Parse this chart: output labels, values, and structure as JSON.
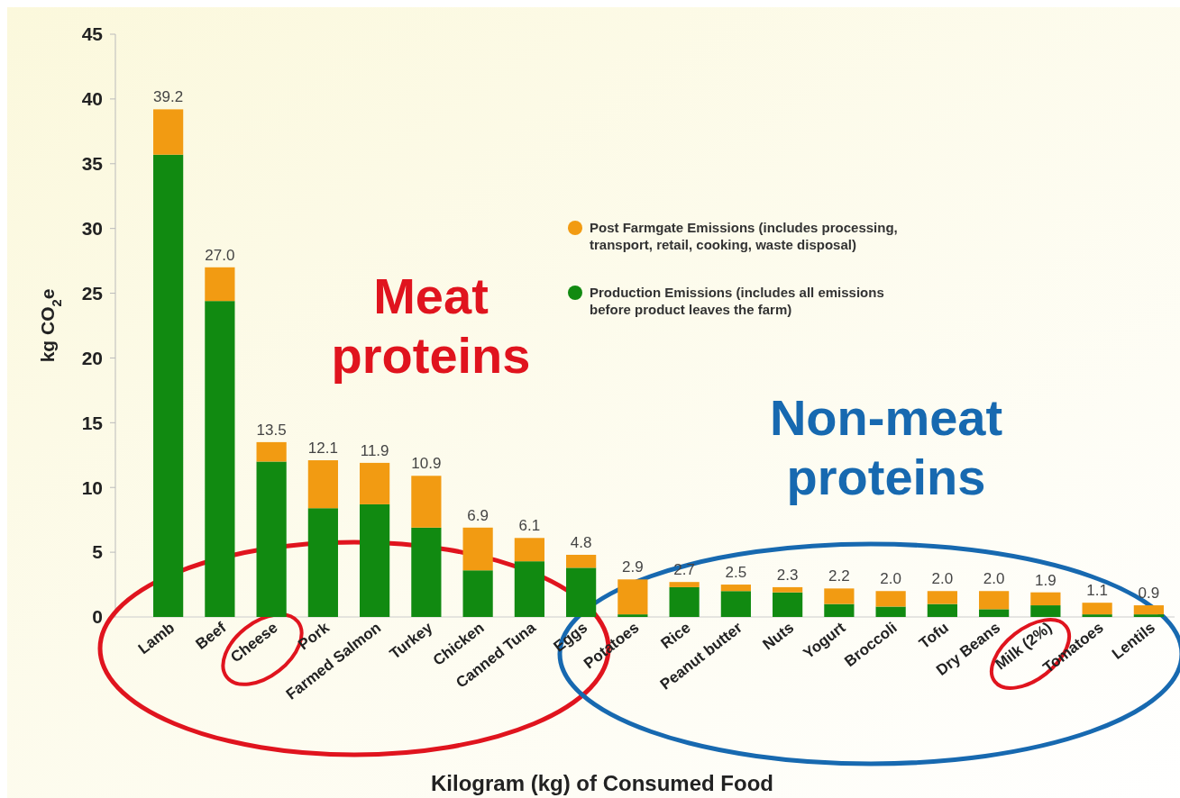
{
  "chart_data": {
    "type": "bar",
    "stacked": true,
    "ylabel": "kg CO$_{2}$e",
    "xlabel": "Kilogram (kg) of Consumed Food",
    "categories": [
      "Lamb",
      "Beef",
      "Cheese",
      "Pork",
      "Farmed Salmon",
      "Turkey",
      "Chicken",
      "Canned Tuna",
      "Eggs",
      "Potatoes",
      "Rice",
      "Peanut butter",
      "Nuts",
      "Yogurt",
      "Broccoli",
      "Tofu",
      "Dry Beans",
      "Milk (2%)",
      "Tomatoes",
      "Lentils"
    ],
    "series": [
      {
        "name": "Production Emissions (includes all emissions before product leaves the farm)",
        "color": "#118a11",
        "values": [
          35.7,
          24.4,
          12.0,
          8.4,
          8.7,
          6.9,
          3.6,
          4.3,
          3.8,
          0.2,
          2.3,
          2.0,
          1.9,
          1.0,
          0.8,
          1.0,
          0.6,
          0.9,
          0.2,
          0.2
        ]
      },
      {
        "name": "Post Farmgate Emissions (includes processing, transport, retail, cooking, waste disposal)",
        "color": "#f29b12",
        "values": [
          3.5,
          2.6,
          1.5,
          3.7,
          3.2,
          4.0,
          3.3,
          1.8,
          1.0,
          2.7,
          0.4,
          0.5,
          0.4,
          1.2,
          1.2,
          1.0,
          1.4,
          1.0,
          0.9,
          0.7
        ]
      }
    ],
    "totals": [
      "39.2",
      "27.0",
      "13.5",
      "12.1",
      "11.9",
      "10.9",
      "6.9",
      "6.1",
      "4.8",
      "2.9",
      "2.7",
      "2.5",
      "2.3",
      "2.2",
      "2.0",
      "2.0",
      "2.0",
      "1.9",
      "1.1",
      "0.9"
    ],
    "ylim": [
      0,
      45
    ],
    "yticks": [
      0,
      5,
      10,
      15,
      20,
      25,
      30,
      35,
      40,
      45
    ],
    "legend": "top right",
    "annotations": [
      "Meat proteins",
      "Non-meat proteins"
    ]
  }
}
